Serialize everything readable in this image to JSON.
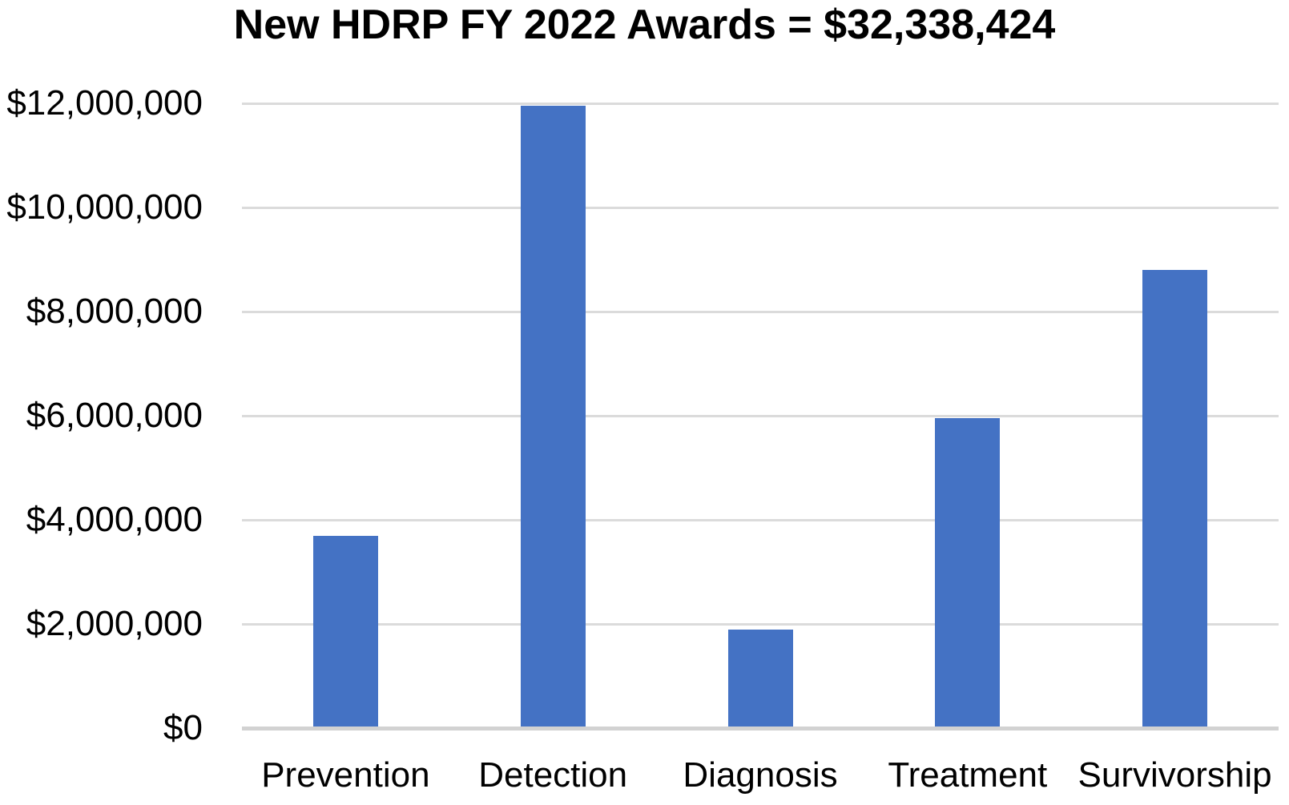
{
  "chart_data": {
    "type": "bar",
    "title": "New HDRP FY 2022 Awards = $32,338,424",
    "categories": [
      "Prevention",
      "Detection",
      "Diagnosis",
      "Treatment",
      "Survivorship"
    ],
    "values": [
      3700000,
      11960000,
      1900000,
      5950000,
      8800000
    ],
    "y_ticks": [
      "$0",
      "$2,000,000",
      "$4,000,000",
      "$6,000,000",
      "$8,000,000",
      "$10,000,000",
      "$12,000,000"
    ],
    "y_tick_values": [
      0,
      2000000,
      4000000,
      6000000,
      8000000,
      10000000,
      12000000
    ],
    "ylim": [
      0,
      12000000
    ],
    "xlabel": "",
    "ylabel": "",
    "grid": true,
    "legend": false,
    "bar_color": "#4472C4",
    "gridline_color": "#DBDBDB",
    "axis_line_color": "#D2D2D2",
    "text_color": "#000000",
    "background_color": "#FFFFFF"
  }
}
